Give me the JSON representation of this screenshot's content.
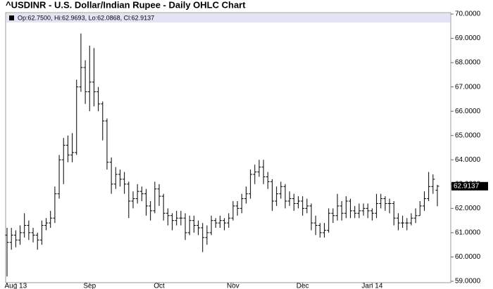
{
  "chart_data": {
    "type": "ohlc",
    "title": "^USDINR - U.S. Dollar/Indian Rupee - Daily OHLC Chart",
    "legend_text": "Op:62.7500, Hi:62.9693, Lo:62.0868, Cl:62.9137",
    "last_label": "62.9137",
    "color": "#000000",
    "grid": false,
    "ylim": [
      59,
      70
    ],
    "yticks": [
      {
        "value": 59,
        "label": "59.0000"
      },
      {
        "value": 60,
        "label": "60.0000"
      },
      {
        "value": 61,
        "label": "61.0000"
      },
      {
        "value": 62,
        "label": "62.0000"
      },
      {
        "value": 63,
        "label": "63.0000"
      },
      {
        "value": 64,
        "label": "64.0000"
      },
      {
        "value": 65,
        "label": "65.0000"
      },
      {
        "value": 66,
        "label": "66.0000"
      },
      {
        "value": 67,
        "label": "67.0000"
      },
      {
        "value": 68,
        "label": "68.0000"
      },
      {
        "value": 69,
        "label": "69.0000"
      },
      {
        "value": 70,
        "label": "70.0000"
      }
    ],
    "categories": [
      null,
      null,
      "Aug 13",
      null,
      null,
      null,
      null,
      null,
      null,
      null,
      null,
      null,
      null,
      null,
      null,
      null,
      null,
      null,
      null,
      "Sep",
      null,
      null,
      null,
      null,
      null,
      null,
      null,
      null,
      null,
      null,
      null,
      null,
      null,
      null,
      null,
      "Oct",
      null,
      null,
      null,
      null,
      null,
      null,
      null,
      null,
      null,
      null,
      null,
      null,
      null,
      null,
      null,
      null,
      "Nov",
      null,
      null,
      null,
      null,
      null,
      null,
      null,
      null,
      null,
      null,
      null,
      null,
      null,
      null,
      null,
      "Dec",
      null,
      null,
      null,
      null,
      null,
      null,
      null,
      null,
      null,
      null,
      null,
      null,
      null,
      null,
      null,
      "Jan 14",
      null,
      null,
      null,
      null,
      null,
      null,
      null,
      null,
      null,
      null,
      null,
      null,
      null,
      null,
      null
    ],
    "open": [
      60.9,
      60.6,
      60.9,
      60.7,
      61.0,
      61.3,
      61.0,
      60.9,
      60.7,
      61.3,
      61.4,
      61.6,
      62.6,
      64.0,
      64.6,
      64.2,
      64.3,
      67.0,
      67.8,
      66.8,
      67.2,
      66.8,
      66.3,
      65.6,
      63.9,
      63.0,
      63.4,
      63.2,
      63.0,
      62.3,
      62.4,
      62.7,
      62.6,
      62.1,
      61.9,
      62.8,
      62.5,
      61.8,
      61.7,
      61.5,
      61.6,
      61.6,
      61.0,
      61.5,
      61.3,
      61.2,
      60.8,
      61.0,
      61.5,
      61.4,
      61.5,
      61.4,
      61.6,
      62.1,
      62.0,
      62.4,
      62.6,
      63.4,
      63.5,
      63.7,
      63.3,
      63.1,
      62.3,
      62.6,
      62.9,
      62.3,
      62.4,
      62.2,
      62.3,
      62.0,
      62.1,
      61.4,
      61.3,
      61.0,
      61.1,
      61.8,
      61.7,
      62.1,
      61.8,
      62.3,
      61.9,
      61.8,
      61.9,
      62.0,
      61.9,
      61.8,
      62.2,
      62.4,
      62.2,
      62.2,
      61.6,
      61.4,
      61.4,
      61.4,
      61.6,
      61.7,
      62.1,
      62.4,
      62.9,
      62.75
    ],
    "high": [
      61.2,
      61.2,
      61.1,
      61.3,
      61.8,
      61.5,
      61.2,
      61.0,
      61.5,
      61.6,
      61.9,
      62.9,
      64.2,
      64.9,
      65.0,
      65.1,
      67.3,
      69.2,
      68.1,
      68.7,
      68.6,
      67.0,
      66.4,
      65.7,
      64.1,
      63.7,
      63.6,
      63.5,
      63.1,
      62.7,
      63.0,
      62.9,
      62.8,
      62.3,
      63.1,
      63.0,
      62.6,
      62.0,
      61.8,
      61.9,
      61.9,
      61.8,
      61.7,
      61.7,
      61.5,
      61.4,
      61.3,
      61.7,
      61.6,
      61.7,
      61.6,
      61.8,
      62.3,
      62.3,
      62.6,
      62.9,
      63.6,
      63.8,
      64.0,
      64.0,
      63.5,
      63.2,
      62.9,
      63.1,
      63.0,
      62.7,
      62.6,
      62.5,
      62.5,
      62.4,
      62.2,
      61.7,
      61.4,
      61.4,
      62.0,
      62.0,
      62.6,
      62.3,
      62.5,
      62.4,
      62.1,
      62.2,
      62.2,
      62.2,
      62.0,
      62.6,
      62.6,
      62.5,
      62.4,
      62.3,
      61.8,
      61.7,
      61.6,
      61.8,
      62.0,
      62.3,
      62.7,
      63.5,
      63.4,
      62.9693
    ],
    "low": [
      59.2,
      60.3,
      60.4,
      60.5,
      60.8,
      60.7,
      60.6,
      60.3,
      60.5,
      61.1,
      61.2,
      61.4,
      62.4,
      63.0,
      63.9,
      63.9,
      64.2,
      66.8,
      66.3,
      66.0,
      66.2,
      66.0,
      64.8,
      63.6,
      62.6,
      62.8,
      62.9,
      62.6,
      61.6,
      62.0,
      62.2,
      62.3,
      61.7,
      61.5,
      61.8,
      62.1,
      61.5,
      61.3,
      61.1,
      61.3,
      61.3,
      60.7,
      60.9,
      61.0,
      60.9,
      60.2,
      60.5,
      60.9,
      61.2,
      61.2,
      61.1,
      61.2,
      61.5,
      61.7,
      61.8,
      62.2,
      62.4,
      63.0,
      63.3,
      63.0,
      62.8,
      61.9,
      62.1,
      62.4,
      62.0,
      62.1,
      61.9,
      62.0,
      61.7,
      61.8,
      61.1,
      60.9,
      60.8,
      60.8,
      61.0,
      61.4,
      61.5,
      61.5,
      61.6,
      61.6,
      61.6,
      61.6,
      61.7,
      61.6,
      61.5,
      61.6,
      62.0,
      61.9,
      61.8,
      61.3,
      61.1,
      61.2,
      61.1,
      61.3,
      61.4,
      61.7,
      61.9,
      62.3,
      62.6,
      62.0868
    ],
    "close": [
      60.6,
      60.9,
      60.7,
      61.0,
      61.3,
      61.0,
      60.9,
      60.7,
      61.3,
      61.4,
      61.6,
      62.6,
      64.0,
      64.6,
      64.2,
      64.3,
      67.0,
      67.8,
      66.8,
      67.2,
      66.8,
      66.3,
      65.6,
      63.9,
      63.0,
      63.4,
      63.2,
      63.0,
      62.3,
      62.4,
      62.7,
      62.6,
      62.1,
      61.9,
      62.8,
      62.5,
      61.8,
      61.7,
      61.5,
      61.6,
      61.6,
      61.0,
      61.5,
      61.3,
      61.2,
      60.8,
      61.0,
      61.5,
      61.4,
      61.5,
      61.4,
      61.6,
      62.1,
      62.0,
      62.4,
      62.6,
      63.4,
      63.5,
      63.7,
      63.3,
      63.1,
      62.3,
      62.6,
      62.9,
      62.3,
      62.4,
      62.2,
      62.3,
      62.0,
      62.1,
      61.4,
      61.3,
      61.0,
      61.1,
      61.8,
      61.7,
      62.1,
      61.8,
      62.3,
      61.9,
      61.8,
      61.9,
      62.0,
      61.9,
      61.8,
      62.2,
      62.4,
      62.2,
      62.2,
      61.6,
      61.4,
      61.4,
      61.4,
      61.6,
      61.7,
      62.1,
      62.4,
      62.9,
      63.2,
      62.9137
    ]
  }
}
